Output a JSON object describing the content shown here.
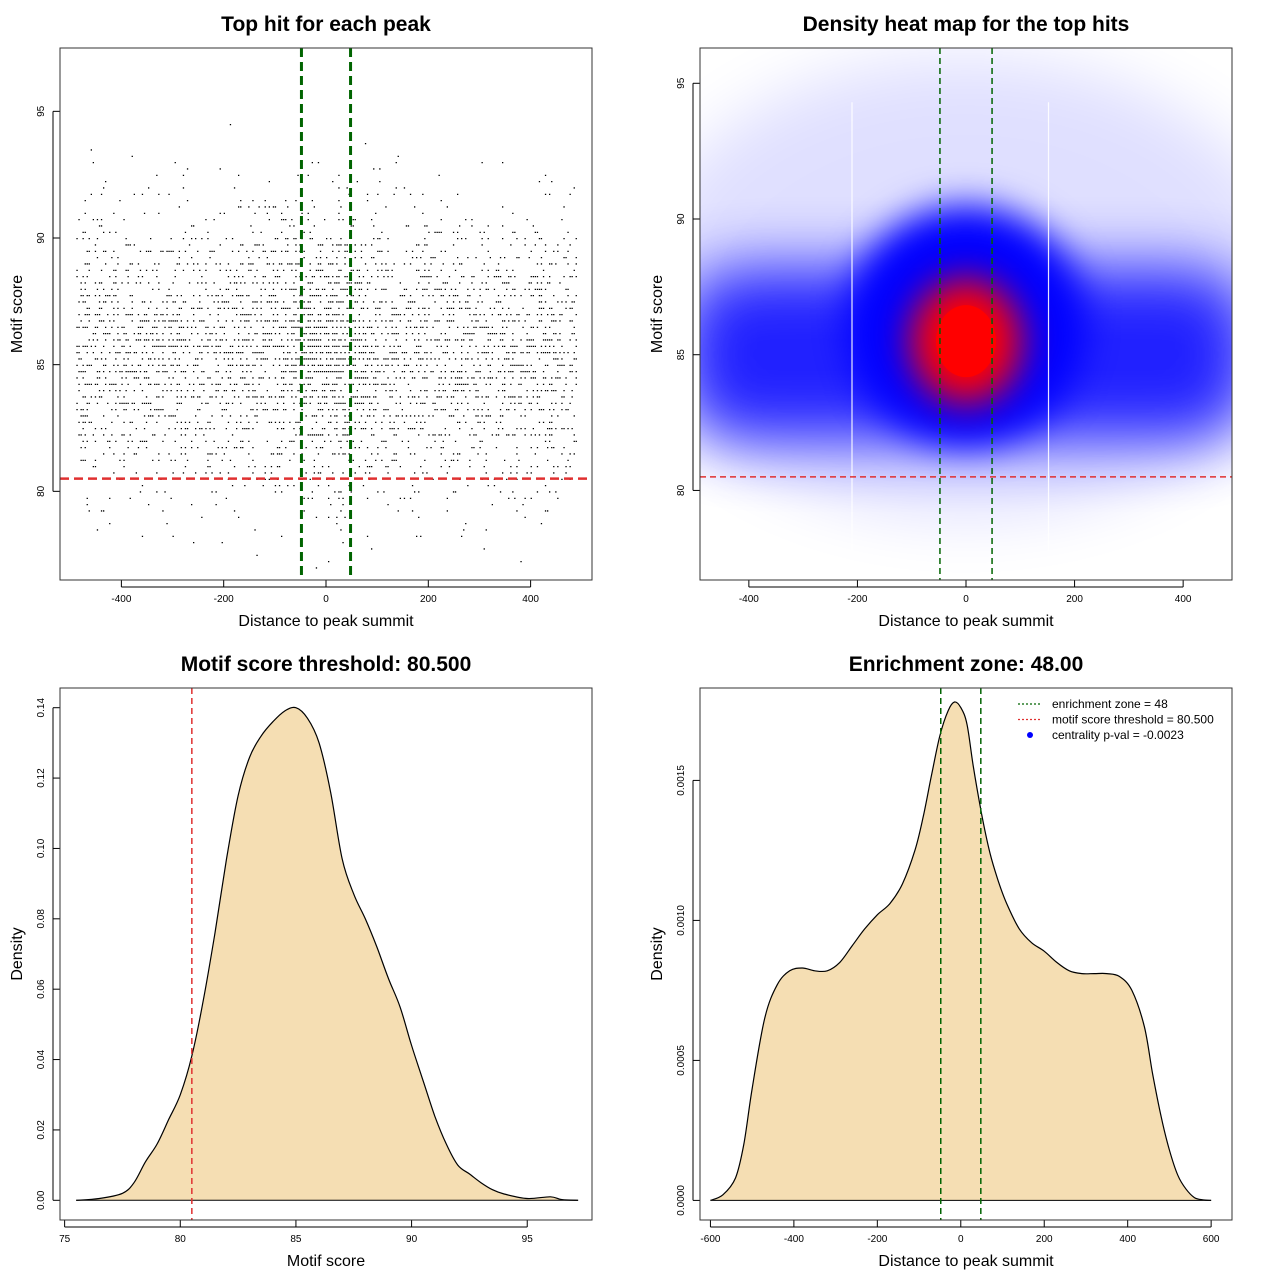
{
  "chart_data": [
    {
      "type": "scatter",
      "title": "Top hit for each peak",
      "xlabel": "Distance to peak summit",
      "ylabel": "Motif score",
      "xlim": [
        -520,
        520
      ],
      "ylim": [
        76.5,
        97.5
      ],
      "xticks": [
        -400,
        -200,
        0,
        200,
        400
      ],
      "yticks": [
        80,
        85,
        90,
        95
      ],
      "points_summary": {
        "n": 9000,
        "x_range": [
          -490,
          490
        ],
        "y_center": 85.5,
        "y_sd": 2.7,
        "central_enrichment": true
      },
      "vlines": [
        -48,
        48
      ],
      "hline": 80.5,
      "vline_color": "#006400",
      "hline_color": "#e03030"
    },
    {
      "type": "heatmap",
      "title": "Density heat map for the top hits",
      "xlabel": "Distance to peak summit",
      "ylabel": "Motif score",
      "xlim": [
        -490,
        490
      ],
      "ylim": [
        76.7,
        96.3
      ],
      "xticks": [
        -400,
        -200,
        0,
        200,
        400
      ],
      "yticks": [
        80,
        85,
        90,
        95
      ],
      "density_peak": {
        "x": 0,
        "y": 85.5
      },
      "colors": [
        "#ffffff",
        "#0000ff",
        "#ff0000"
      ],
      "vlines": [
        -48,
        48
      ],
      "hline": 80.5,
      "vline_color": "#006400",
      "hline_color": "#e03030"
    },
    {
      "type": "area",
      "title": "Motif score threshold: 80.500",
      "xlabel": "Motif score",
      "ylabel": "Density",
      "xlim": [
        74.8,
        97.8
      ],
      "ylim": [
        -0.0056,
        0.1456
      ],
      "xticks": [
        75,
        80,
        85,
        90,
        95
      ],
      "yticks": [
        "0.00",
        "0.02",
        "0.04",
        "0.06",
        "0.08",
        "0.10",
        "0.12",
        "0.14"
      ],
      "x": [
        75.5,
        76.5,
        77.5,
        78,
        78.5,
        79,
        79.5,
        80,
        80.5,
        81,
        81.5,
        82,
        82.5,
        83,
        83.5,
        84,
        84.5,
        85,
        85.5,
        86,
        86.5,
        87,
        87.5,
        88,
        88.5,
        89,
        89.5,
        90,
        90.5,
        91,
        91.5,
        92,
        92.5,
        93,
        93.5,
        94,
        95,
        96,
        96.5,
        97.2
      ],
      "y": [
        0,
        0.0005,
        0.002,
        0.005,
        0.011,
        0.016,
        0.023,
        0.03,
        0.041,
        0.057,
        0.076,
        0.097,
        0.115,
        0.126,
        0.132,
        0.136,
        0.139,
        0.14,
        0.137,
        0.13,
        0.116,
        0.097,
        0.087,
        0.08,
        0.072,
        0.063,
        0.055,
        0.044,
        0.034,
        0.024,
        0.016,
        0.01,
        0.0075,
        0.005,
        0.003,
        0.0018,
        0.0005,
        0.001,
        0.0002,
        0
      ],
      "fill": "#f5deb3",
      "vline": 80.5,
      "vline_color": "#e03030"
    },
    {
      "type": "area",
      "title": "Enrichment zone: 48.00",
      "xlabel": "Distance to peak summit",
      "ylabel": "Density",
      "xlim": [
        -625,
        650
      ],
      "ylim": [
        -7e-05,
        0.00183
      ],
      "xticks": [
        -600,
        -400,
        -200,
        0,
        200,
        400,
        600
      ],
      "yticks": [
        "0.0000",
        "0.0005",
        "0.0010",
        "0.0015"
      ],
      "x": [
        -600,
        -570,
        -540,
        -520,
        -500,
        -470,
        -440,
        -410,
        -380,
        -350,
        -320,
        -290,
        -260,
        -230,
        -200,
        -170,
        -140,
        -110,
        -90,
        -70,
        -50,
        -30,
        -15,
        0,
        15,
        30,
        50,
        70,
        90,
        110,
        140,
        170,
        200,
        230,
        260,
        290,
        320,
        350,
        380,
        410,
        440,
        460,
        480,
        500,
        520,
        540,
        560,
        580,
        600
      ],
      "y": [
        0,
        2e-05,
        8e-05,
        0.0002,
        0.0004,
        0.00065,
        0.00077,
        0.00082,
        0.00083,
        0.00082,
        0.00082,
        0.00085,
        0.00091,
        0.00097,
        0.00102,
        0.00106,
        0.00113,
        0.00125,
        0.00137,
        0.00152,
        0.00166,
        0.00175,
        0.00178,
        0.00176,
        0.0017,
        0.00155,
        0.00138,
        0.00124,
        0.00114,
        0.00106,
        0.00097,
        0.00092,
        0.00089,
        0.00085,
        0.00082,
        0.00081,
        0.00081,
        0.00081,
        0.0008,
        0.00075,
        0.00062,
        0.00045,
        0.0003,
        0.00018,
        9e-05,
        4e-05,
        1e-05,
        2e-06,
        0
      ],
      "fill": "#f5deb3",
      "vlines": [
        -48,
        48
      ],
      "vline_color": "#006400",
      "legend": [
        {
          "label": "enrichment zone = 48",
          "style": "dotted",
          "color": "#006400"
        },
        {
          "label": "motif score threshold = 80.500",
          "style": "dotted",
          "color": "#e03030"
        },
        {
          "label": "centrality p-val = -0.0023",
          "style": "point",
          "color": "#0000ff"
        }
      ]
    }
  ]
}
